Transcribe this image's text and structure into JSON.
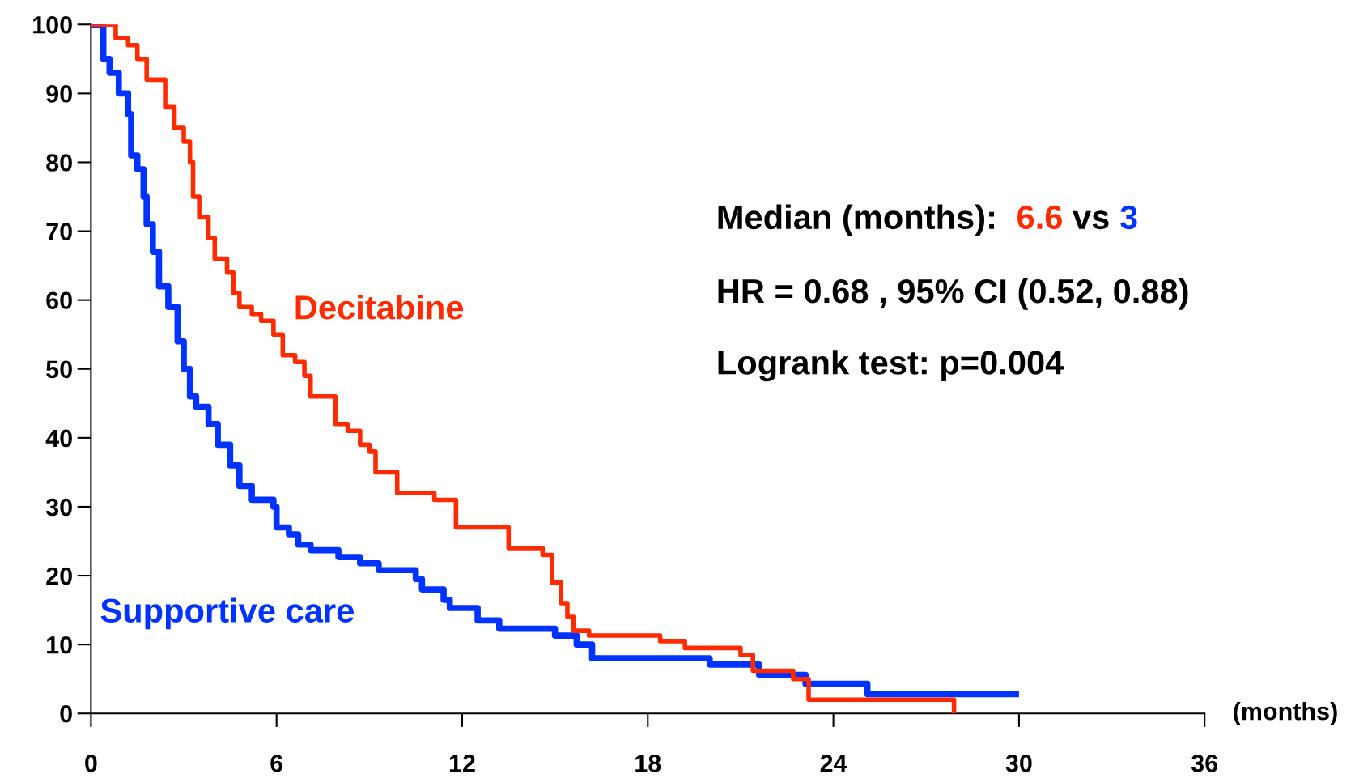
{
  "chart_data": {
    "type": "step",
    "xlabel": "(months)",
    "xlim": [
      0,
      36
    ],
    "xticks": [
      0,
      6,
      12,
      18,
      24,
      30,
      36
    ],
    "ylim": [
      0,
      100
    ],
    "yticks": [
      0,
      10,
      20,
      30,
      40,
      50,
      60,
      70,
      80,
      90,
      100
    ],
    "grid": false,
    "legend": false,
    "marker": "none",
    "line_style": "solid",
    "series": [
      {
        "name": "Decitabine",
        "color": "#ff2a00",
        "x": [
          0,
          0.8,
          1.2,
          1.5,
          1.8,
          2.4,
          2.7,
          3.0,
          3.2,
          3.3,
          3.5,
          3.8,
          4.0,
          4.4,
          4.6,
          4.8,
          5.2,
          5.5,
          5.9,
          6.2,
          6.6,
          6.9,
          7.1,
          7.9,
          8.3,
          8.7,
          9.0,
          9.2,
          9.9,
          11.1,
          11.8,
          13.5,
          14.6,
          14.9,
          15.2,
          15.4,
          15.6,
          16.1,
          18.4,
          19.2,
          21.0,
          21.4,
          22.7,
          23.2,
          27.9
        ],
        "values": [
          100,
          98,
          97,
          95,
          92,
          88,
          85,
          83,
          80,
          75,
          72,
          69,
          66,
          64,
          61,
          59,
          58,
          57,
          55,
          52,
          51,
          49,
          46,
          42,
          41,
          39,
          38,
          35,
          32,
          31,
          27,
          24,
          23,
          19,
          16,
          14,
          12,
          11.3,
          10.5,
          9.5,
          8.5,
          6.2,
          5,
          2,
          0
        ]
      },
      {
        "name": "Supportive care",
        "color": "#0033ff",
        "x": [
          0,
          0.4,
          0.6,
          0.9,
          1.2,
          1.3,
          1.5,
          1.7,
          1.8,
          2.0,
          2.2,
          2.5,
          2.8,
          3.0,
          3.2,
          3.4,
          3.8,
          4.1,
          4.5,
          4.8,
          5.2,
          5.9,
          6.0,
          6.4,
          6.7,
          7.1,
          8.0,
          8.7,
          9.3,
          10.5,
          10.7,
          11.4,
          11.6,
          12.5,
          13.2,
          15.0,
          15.7,
          16.2,
          20.0,
          21.6,
          23.1,
          25.1,
          30.0
        ],
        "values": [
          100,
          95,
          93,
          90,
          87,
          81,
          79,
          75,
          71,
          67,
          62,
          59,
          54,
          50,
          46,
          44.5,
          42,
          39,
          36,
          33,
          31,
          30,
          27,
          26,
          24.5,
          23.7,
          22.7,
          21.8,
          20.8,
          19.5,
          18,
          16.5,
          15.3,
          13.5,
          12.3,
          11.3,
          10,
          8,
          7.1,
          5.6,
          4.3,
          2.8,
          2.8
        ]
      }
    ],
    "annotations": [
      "Median (months):  ",
      "6.6",
      " vs ",
      "3",
      "HR = 0.68 , 95% CI (0.52, 0.88)",
      "Logrank test: p=0.004"
    ]
  }
}
